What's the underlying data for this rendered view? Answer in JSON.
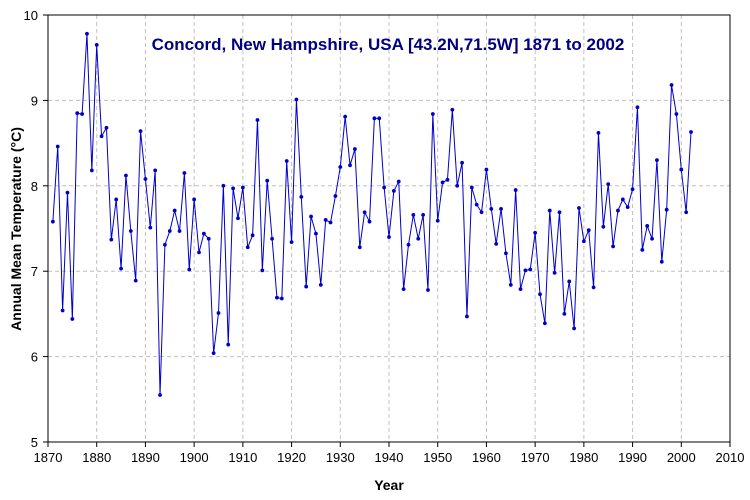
{
  "chart_data": {
    "type": "line",
    "title": "Concord, New Hampshire, USA [43.2N,71.5W] 1871 to 2002",
    "xlabel": "Year",
    "ylabel": "Annual Mean Temperature (°C)",
    "xlim": [
      1870,
      2010
    ],
    "ylim": [
      5,
      10
    ],
    "xticks": [
      1870,
      1880,
      1890,
      1900,
      1910,
      1920,
      1930,
      1940,
      1950,
      1960,
      1970,
      1980,
      1990,
      2000,
      2010
    ],
    "yticks": [
      5,
      6,
      7,
      8,
      9,
      10
    ],
    "grid": true,
    "title_color": "#000080",
    "line_color": "#0000cc",
    "grid_color": "#c0c0c0",
    "series": [
      {
        "x": [
          1871,
          1872,
          1873,
          1874,
          1875,
          1876,
          1877,
          1878,
          1879,
          1880,
          1881,
          1882,
          1883,
          1884,
          1885,
          1886,
          1887,
          1888,
          1889,
          1890,
          1891,
          1892,
          1893,
          1894,
          1895,
          1896,
          1897,
          1898,
          1899,
          1900,
          1901,
          1902,
          1903,
          1904,
          1905,
          1906,
          1907,
          1908,
          1909,
          1910,
          1911,
          1912,
          1913,
          1914,
          1915,
          1916,
          1917,
          1918,
          1919,
          1920,
          1921,
          1922,
          1923,
          1924,
          1925,
          1926,
          1927,
          1928,
          1929,
          1930,
          1931,
          1932,
          1933,
          1934,
          1935,
          1936,
          1937,
          1938,
          1939,
          1940,
          1941,
          1942,
          1943,
          1944,
          1945,
          1946,
          1947,
          1948,
          1949,
          1950,
          1951,
          1952,
          1953,
          1954,
          1955,
          1956,
          1957,
          1958,
          1959,
          1960,
          1961,
          1962,
          1963,
          1964,
          1965,
          1966,
          1967,
          1968,
          1969,
          1970,
          1971,
          1972,
          1973,
          1974,
          1975,
          1976,
          1977,
          1978,
          1979,
          1980,
          1981,
          1982,
          1983,
          1984,
          1985,
          1986,
          1987,
          1988,
          1989,
          1990,
          1991,
          1992,
          1993,
          1994,
          1995,
          1996,
          1997,
          1998,
          1999,
          2000,
          2001,
          2002
        ],
        "values": [
          7.58,
          8.46,
          6.54,
          7.92,
          6.44,
          8.85,
          8.84,
          9.78,
          8.18,
          9.65,
          8.58,
          8.68,
          7.37,
          7.84,
          7.03,
          8.12,
          7.47,
          6.89,
          8.64,
          8.08,
          7.51,
          8.18,
          5.55,
          7.31,
          7.47,
          7.71,
          7.47,
          8.15,
          7.02,
          7.84,
          7.22,
          7.44,
          7.38,
          6.04,
          6.51,
          8.0,
          6.14,
          7.97,
          7.62,
          7.98,
          7.28,
          7.42,
          8.77,
          7.01,
          8.06,
          7.38,
          6.69,
          6.68,
          8.29,
          7.34,
          9.01,
          7.87,
          6.82,
          7.64,
          7.44,
          6.84,
          7.6,
          7.57,
          7.88,
          8.22,
          8.81,
          8.24,
          8.43,
          7.28,
          7.69,
          7.58,
          8.79,
          8.79,
          7.98,
          7.4,
          7.94,
          8.05,
          6.79,
          7.31,
          7.66,
          7.38,
          7.66,
          6.78,
          8.84,
          7.59,
          8.04,
          8.07,
          8.89,
          8.0,
          8.27,
          6.47,
          7.98,
          7.78,
          7.69,
          8.19,
          7.73,
          7.32,
          7.73,
          7.21,
          6.84,
          7.95,
          6.79,
          7.01,
          7.02,
          7.45,
          6.73,
          6.39,
          7.71,
          6.98,
          7.69,
          6.5,
          6.88,
          6.33,
          7.74,
          7.35,
          7.48,
          6.81,
          8.62,
          7.52,
          8.02,
          7.29,
          7.71,
          7.84,
          7.75,
          7.96,
          8.92,
          7.25,
          7.53,
          7.38,
          8.3,
          7.11,
          7.72,
          9.18,
          8.84,
          8.19,
          7.69,
          8.63
        ]
      }
    ]
  }
}
